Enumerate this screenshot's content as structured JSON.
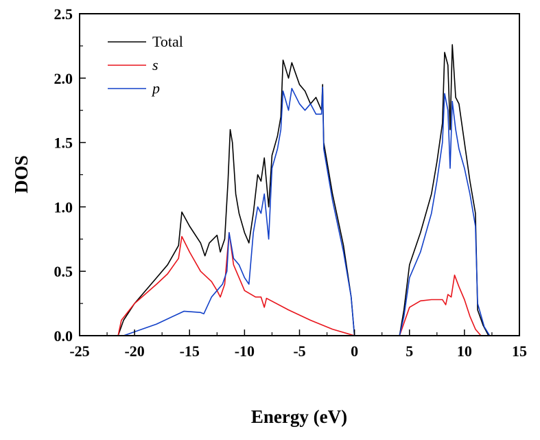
{
  "chart_data": {
    "type": "line",
    "title": "",
    "xlabel": "Energy (eV)",
    "ylabel": "DOS",
    "xlim": [
      -25,
      15
    ],
    "ylim": [
      0,
      2.5
    ],
    "xticks": [
      "-25",
      "-20",
      "-15",
      "-10",
      "-5",
      "0",
      "5",
      "10",
      "15"
    ],
    "yticks": [
      "0.0",
      "0.5",
      "1.0",
      "1.5",
      "2.0",
      "2.5"
    ],
    "legend_position": "top-left",
    "grid": false,
    "series": [
      {
        "name": "Total",
        "italic": false,
        "color": "#000000",
        "x": [
          -23,
          -21.5,
          -21,
          -20,
          -18,
          -17,
          -16,
          -15.7,
          -15,
          -14,
          -13.6,
          -13.2,
          -12.5,
          -12.2,
          -11.8,
          -11.5,
          -11.3,
          -11.1,
          -10.8,
          -10.5,
          -10,
          -9.6,
          -9.2,
          -8.8,
          -8.5,
          -8.2,
          -7.8,
          -7.5,
          -7,
          -6.7,
          -6.5,
          -6,
          -5.7,
          -5,
          -4.5,
          -4,
          -3.5,
          -3,
          -2.9,
          -2.8,
          -2,
          -1,
          -0.3,
          0,
          4.1,
          4.5,
          5,
          6,
          7,
          7.5,
          8,
          8.2,
          8.5,
          8.7,
          8.9,
          9.2,
          9.5,
          10,
          10.5,
          11,
          11.2,
          11.7,
          12.2,
          14
        ],
        "y": [
          0,
          0,
          0.12,
          0.25,
          0.45,
          0.55,
          0.7,
          0.96,
          0.85,
          0.72,
          0.62,
          0.72,
          0.78,
          0.65,
          0.75,
          1.2,
          1.6,
          1.5,
          1.1,
          0.95,
          0.8,
          0.72,
          0.95,
          1.25,
          1.2,
          1.38,
          1.0,
          1.4,
          1.55,
          1.7,
          2.14,
          2.0,
          2.12,
          1.95,
          1.9,
          1.8,
          1.85,
          1.75,
          1.95,
          1.5,
          1.1,
          0.7,
          0.3,
          0,
          0,
          0.2,
          0.55,
          0.8,
          1.1,
          1.35,
          1.65,
          2.2,
          2.1,
          1.6,
          2.26,
          1.85,
          1.8,
          1.5,
          1.2,
          0.95,
          0.2,
          0.08,
          0,
          0
        ]
      },
      {
        "name": "s",
        "italic": true,
        "color": "#e8141b",
        "x": [
          -21.5,
          -21.2,
          -20,
          -18,
          -17,
          -16,
          -15.7,
          -15,
          -14,
          -13,
          -12.5,
          -12.2,
          -11.8,
          -11.4,
          -11,
          -10.5,
          -10,
          -9,
          -8.5,
          -8.2,
          -8,
          -6,
          -4,
          -2,
          0,
          4.1,
          5,
          6,
          7,
          8,
          8.3,
          8.5,
          8.8,
          9.1,
          9.5,
          10,
          10.5,
          11,
          11.5,
          14
        ],
        "y": [
          0,
          0.12,
          0.25,
          0.4,
          0.48,
          0.6,
          0.77,
          0.65,
          0.5,
          0.42,
          0.35,
          0.3,
          0.4,
          0.8,
          0.55,
          0.45,
          0.35,
          0.3,
          0.3,
          0.22,
          0.29,
          0.2,
          0.12,
          0.05,
          0,
          0,
          0.22,
          0.27,
          0.28,
          0.28,
          0.24,
          0.32,
          0.3,
          0.47,
          0.38,
          0.28,
          0.15,
          0.05,
          0,
          0
        ]
      },
      {
        "name": "p",
        "italic": true,
        "color": "#1240c8",
        "x": [
          -23,
          -21,
          -20,
          -18,
          -16,
          -15.5,
          -14,
          -13.7,
          -13,
          -12.5,
          -12,
          -11.6,
          -11.4,
          -11,
          -10.5,
          -10,
          -9.6,
          -9.2,
          -8.8,
          -8.5,
          -8.2,
          -7.8,
          -7.5,
          -7,
          -6.7,
          -6.5,
          -6,
          -5.7,
          -5,
          -4.5,
          -4,
          -3.5,
          -3,
          -2.9,
          -2.8,
          -2,
          -1,
          -0.3,
          0,
          4.1,
          4.5,
          5,
          6,
          7,
          7.5,
          8,
          8.2,
          8.5,
          8.7,
          8.9,
          9.2,
          9.5,
          10,
          10.5,
          11,
          11.2,
          11.8,
          12.3,
          14
        ],
        "y": [
          0,
          0,
          0.03,
          0.09,
          0.17,
          0.19,
          0.18,
          0.17,
          0.3,
          0.35,
          0.4,
          0.5,
          0.8,
          0.6,
          0.55,
          0.45,
          0.4,
          0.8,
          1.0,
          0.95,
          1.1,
          0.75,
          1.3,
          1.45,
          1.6,
          1.9,
          1.75,
          1.92,
          1.8,
          1.75,
          1.8,
          1.72,
          1.72,
          1.93,
          1.45,
          1.05,
          0.65,
          0.3,
          0,
          0,
          0.15,
          0.45,
          0.65,
          0.95,
          1.2,
          1.5,
          1.88,
          1.75,
          1.3,
          1.82,
          1.6,
          1.45,
          1.3,
          1.1,
          0.85,
          0.25,
          0.07,
          0,
          0
        ]
      }
    ]
  }
}
